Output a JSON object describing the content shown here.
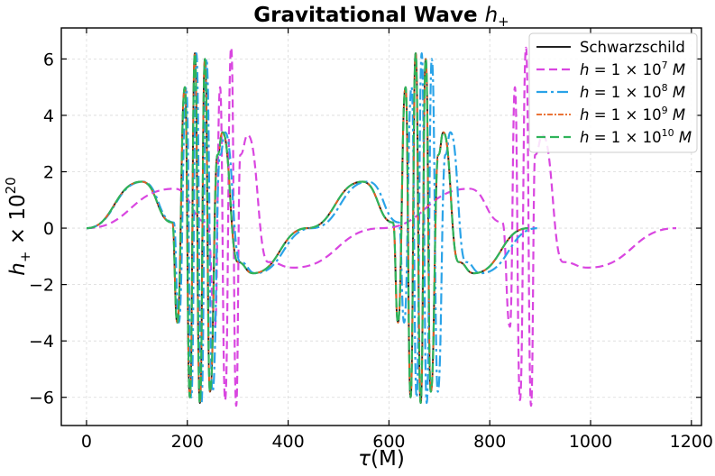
{
  "chart_data": {
    "type": "line",
    "title": "Gravitational Wave ",
    "title_math": "h",
    "title_math_sub": "+",
    "xlabel_sym": "τ",
    "xlabel_unit": "(M)",
    "ylabel_sym": "h",
    "ylabel_sub": "+",
    "ylabel_rest": " × 10",
    "ylabel_exp": "20",
    "xlim": [
      -50,
      1220
    ],
    "ylim": [
      -7.0,
      7.1
    ],
    "xticks": [
      0,
      200,
      400,
      600,
      800,
      1000,
      1200
    ],
    "xtick_labels": [
      "0",
      "200",
      "400",
      "600",
      "800",
      "1000",
      "1200"
    ],
    "yticks": [
      -6,
      -4,
      -2,
      0,
      2,
      4,
      6
    ],
    "ytick_labels": [
      "−6",
      "−4",
      "−2",
      "0",
      "2",
      "4",
      "6"
    ],
    "grid": true,
    "legend_position": "top-right",
    "series": [
      {
        "name": "Schwarzschild",
        "label_parts": [
          {
            "t": "Schwarzschild"
          }
        ],
        "color": "#222222",
        "dash": "solid",
        "width": 2.0,
        "tend": 878,
        "period": 438,
        "ramp": [
          [
            0,
            0
          ],
          [
            110,
            1.65
          ],
          [
            170,
            0.2
          ],
          [
            180,
            -3.35
          ],
          [
            195,
            5.0
          ],
          [
            205,
            -6.0
          ],
          [
            215,
            6.2
          ],
          [
            225,
            -6.2
          ],
          [
            235,
            6.0
          ],
          [
            245,
            -5.8
          ],
          [
            260,
            2.6
          ],
          [
            270,
            3.4
          ],
          [
            300,
            -1.2
          ],
          [
            330,
            -1.6
          ],
          [
            438,
            0
          ]
        ]
      },
      {
        "name": "h = 1 × 10^7 M",
        "label_parts": [
          {
            "t": "h",
            "i": true
          },
          {
            "t": " = 1 × 10"
          },
          {
            "t": "7",
            "sup": true
          },
          {
            "t": " M",
            "i": true
          }
        ],
        "color": "#d946e0",
        "dash": "9,5",
        "width": 2.2,
        "tend": 1170,
        "period": 585,
        "ramp": [
          [
            0,
            0
          ],
          [
            175,
            1.4
          ],
          [
            240,
            0.2
          ],
          [
            255,
            -3.5
          ],
          [
            265,
            5.0
          ],
          [
            275,
            -6.1
          ],
          [
            287,
            6.4
          ],
          [
            297,
            -6.3
          ],
          [
            305,
            2.6
          ],
          [
            320,
            3.3
          ],
          [
            360,
            -1.2
          ],
          [
            410,
            -1.4
          ],
          [
            585,
            0
          ]
        ]
      },
      {
        "name": "h = 1 × 10^8 M",
        "label_parts": [
          {
            "t": "h",
            "i": true
          },
          {
            "t": " = 1 × 10"
          },
          {
            "t": "8",
            "sup": true
          },
          {
            "t": " M",
            "i": true
          }
        ],
        "color": "#2aa3e8",
        "dash": "12,4,3,4",
        "width": 2.2,
        "tend": 895,
        "period": 447,
        "ramp": [
          [
            0,
            0
          ],
          [
            112,
            1.65
          ],
          [
            173,
            0.2
          ],
          [
            183,
            -3.35
          ],
          [
            198,
            5.0
          ],
          [
            208,
            -6.0
          ],
          [
            218,
            6.2
          ],
          [
            228,
            -6.2
          ],
          [
            238,
            6.0
          ],
          [
            250,
            -5.8
          ],
          [
            265,
            2.6
          ],
          [
            275,
            3.4
          ],
          [
            305,
            -1.2
          ],
          [
            335,
            -1.6
          ],
          [
            447,
            0
          ]
        ]
      },
      {
        "name": "h = 1 × 10^9 M",
        "label_parts": [
          {
            "t": "h",
            "i": true
          },
          {
            "t": " = 1 × 10"
          },
          {
            "t": "9",
            "sup": true
          },
          {
            "t": " M",
            "i": true
          }
        ],
        "color": "#e8601c",
        "dash": "6,2,2,2",
        "width": 1.8,
        "tend": 878,
        "period": 438,
        "ramp": [
          [
            0,
            0
          ],
          [
            110,
            1.65
          ],
          [
            170,
            0.2
          ],
          [
            180,
            -3.35
          ],
          [
            195,
            5.0
          ],
          [
            205,
            -6.0
          ],
          [
            215,
            6.2
          ],
          [
            225,
            -6.2
          ],
          [
            235,
            6.0
          ],
          [
            245,
            -5.8
          ],
          [
            260,
            2.6
          ],
          [
            270,
            3.4
          ],
          [
            300,
            -1.2
          ],
          [
            330,
            -1.6
          ],
          [
            438,
            0
          ]
        ]
      },
      {
        "name": "h = 1 × 10^10 M",
        "label_parts": [
          {
            "t": "h",
            "i": true
          },
          {
            "t": " = 1 × 10"
          },
          {
            "t": "10",
            "sup": true
          },
          {
            "t": " M",
            "i": true
          }
        ],
        "color": "#2fb35a",
        "dash": "10,5",
        "width": 2.2,
        "tend": 878,
        "period": 438,
        "ramp": [
          [
            0,
            0
          ],
          [
            110,
            1.65
          ],
          [
            170,
            0.2
          ],
          [
            180,
            -3.35
          ],
          [
            195,
            5.0
          ],
          [
            205,
            -6.0
          ],
          [
            215,
            6.2
          ],
          [
            225,
            -6.2
          ],
          [
            235,
            6.0
          ],
          [
            245,
            -5.8
          ],
          [
            260,
            2.6
          ],
          [
            270,
            3.4
          ],
          [
            300,
            -1.2
          ],
          [
            330,
            -1.6
          ],
          [
            438,
            0
          ]
        ]
      }
    ]
  }
}
